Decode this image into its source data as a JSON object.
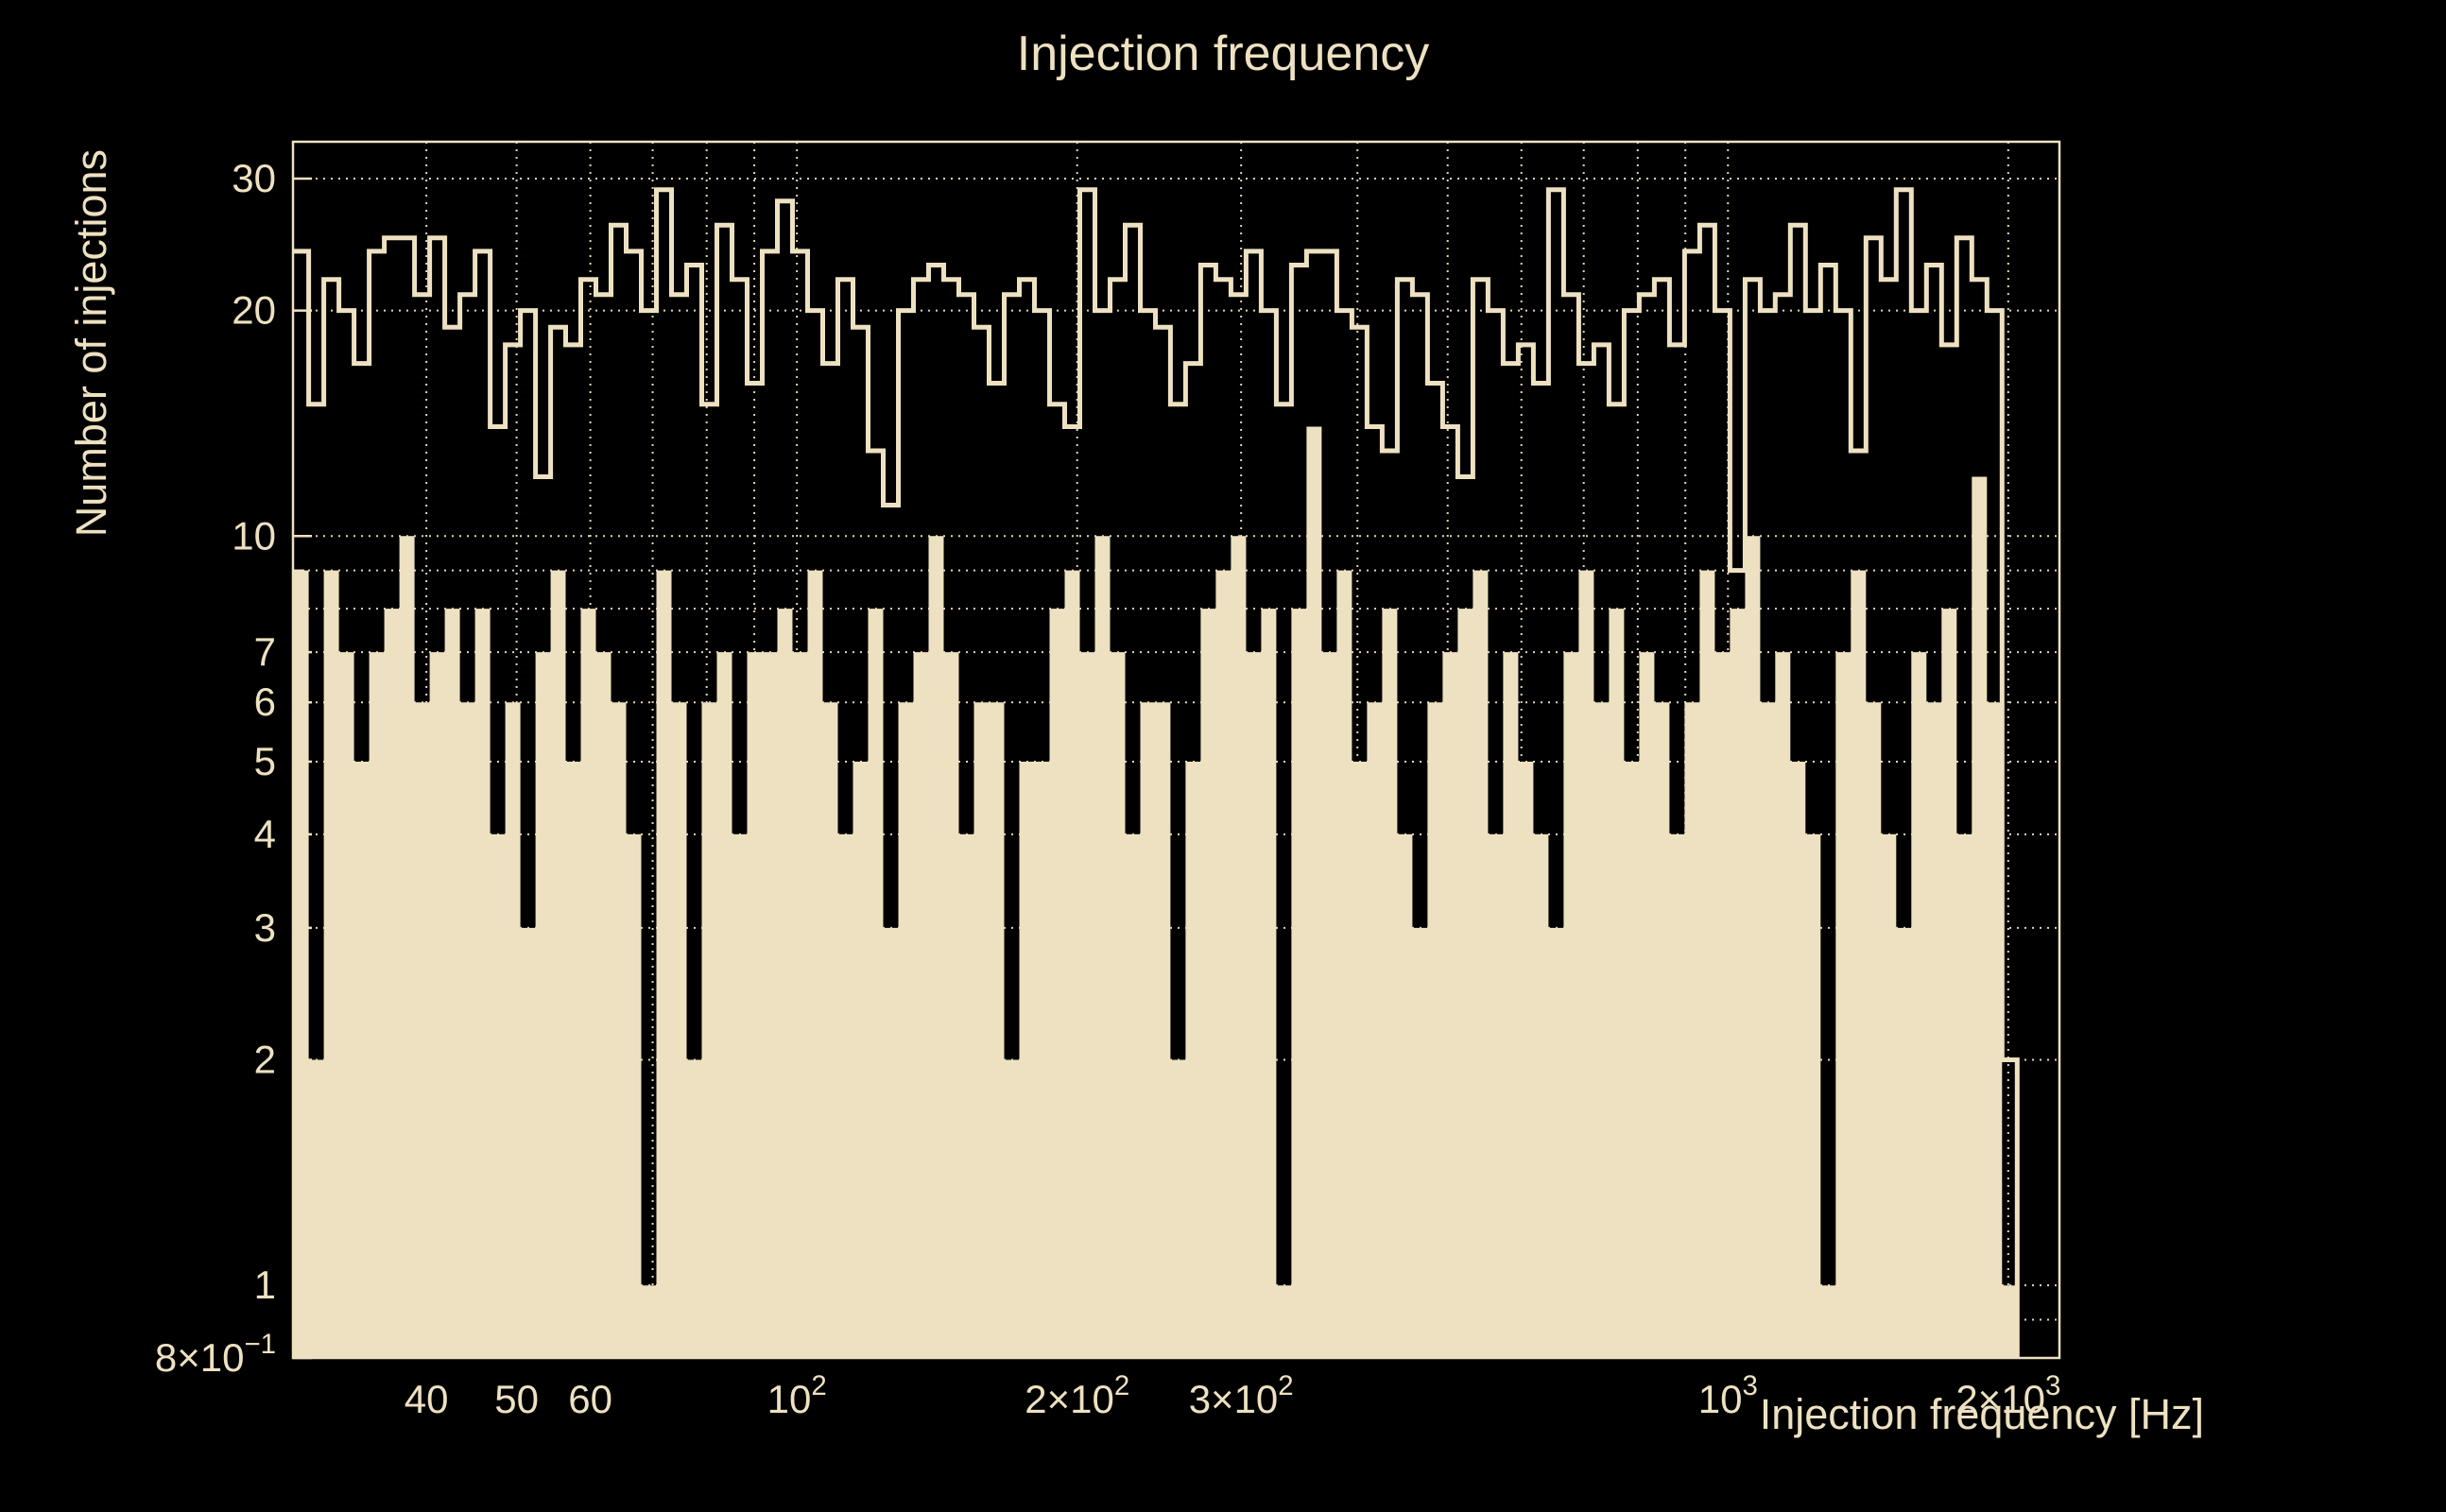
{
  "title": "Injection frequency",
  "chart_data": {
    "type": "histogram",
    "title": "Injection frequency",
    "xlabel": "Injection frequency [Hz]",
    "ylabel": "Number of injections",
    "x_scale": "log",
    "y_scale": "log",
    "x_range": [
      28.76,
      2270
    ],
    "y_range": [
      0.8,
      33.6
    ],
    "grid": true,
    "legend": "none",
    "colors": {
      "background": "#000000",
      "foreground": "#EDE1C1",
      "grid": "#EDE1C1",
      "frame": "#EDE1C1"
    },
    "bins": {
      "first_edge_hz": 28.8,
      "count": 114,
      "log_step_ratio": 1.0381,
      "last_edge_hz": 2059
    },
    "series": [
      {
        "name": "all-injections-outline",
        "style": "step-outline",
        "values": [
          24,
          15,
          22,
          20,
          17,
          24,
          25,
          25,
          21,
          25,
          19,
          21,
          24,
          14,
          18,
          20,
          12,
          19,
          18,
          22,
          21,
          26,
          24,
          20,
          29,
          21,
          23,
          15,
          26,
          22,
          16,
          24,
          28,
          24,
          20,
          17,
          22,
          19,
          13,
          11,
          20,
          22,
          23,
          22,
          21,
          19,
          16,
          21,
          22,
          20,
          15,
          14,
          29,
          20,
          22,
          26,
          20,
          19,
          15,
          17,
          23,
          22,
          21,
          24,
          20,
          15,
          23,
          24,
          24,
          20,
          19,
          14,
          13,
          22,
          21,
          16,
          14,
          12,
          22,
          20,
          17,
          18,
          16,
          29,
          21,
          17,
          18,
          15,
          20,
          21,
          22,
          18,
          24,
          26,
          20,
          9,
          22,
          20,
          21,
          26,
          20,
          23,
          20,
          13,
          25,
          22,
          29,
          20,
          23,
          18,
          25,
          22,
          20,
          2
        ]
      },
      {
        "name": "subset-filled",
        "style": "filled",
        "values": [
          9,
          2,
          9,
          7,
          5,
          7,
          8,
          10,
          6,
          7,
          8,
          6,
          8,
          4,
          6,
          3,
          7,
          9,
          5,
          8,
          7,
          6,
          4,
          1,
          9,
          6,
          2,
          6,
          7,
          4,
          7,
          7,
          8,
          7,
          9,
          6,
          4,
          5,
          8,
          3,
          6,
          7,
          10,
          7,
          4,
          6,
          6,
          2,
          5,
          5,
          8,
          9,
          7,
          10,
          7,
          4,
          6,
          6,
          2,
          5,
          8,
          9,
          10,
          7,
          8,
          1,
          8,
          14,
          7,
          9,
          5,
          6,
          8,
          4,
          3,
          6,
          7,
          8,
          9,
          4,
          7,
          5,
          4,
          3,
          7,
          9,
          6,
          8,
          5,
          7,
          6,
          4,
          6,
          9,
          7,
          8,
          10,
          6,
          7,
          5,
          4,
          1,
          7,
          9,
          6,
          4,
          3,
          7,
          6,
          8,
          4,
          12,
          6,
          1
        ]
      }
    ],
    "x_ticks": [
      {
        "value": 40,
        "label": "40"
      },
      {
        "value": 50,
        "label": "50"
      },
      {
        "value": 60,
        "label": "60"
      },
      {
        "value": 100,
        "label": "10^2"
      },
      {
        "value": 200,
        "label": "2×10^2"
      },
      {
        "value": 300,
        "label": "3×10^2"
      },
      {
        "value": 1000,
        "label": "10^3"
      },
      {
        "value": 2000,
        "label": "2×10^3"
      }
    ],
    "x_minor_ticks": [
      70,
      80,
      90,
      400,
      500,
      600,
      700,
      800,
      900
    ],
    "y_ticks": [
      {
        "value": 30,
        "label": "30"
      },
      {
        "value": 20,
        "label": "20"
      },
      {
        "value": 10,
        "label": "10"
      },
      {
        "value": 7,
        "label": "7"
      },
      {
        "value": 6,
        "label": "6"
      },
      {
        "value": 5,
        "label": "5"
      },
      {
        "value": 4,
        "label": "4"
      },
      {
        "value": 3,
        "label": "3"
      },
      {
        "value": 2,
        "label": "2"
      },
      {
        "value": 1,
        "label": "1"
      },
      {
        "value": 0.8,
        "label": "8×10^-1"
      }
    ],
    "y_minor_ticks": [
      8,
      9,
      0.9
    ],
    "x_gridlines": [
      40,
      50,
      60,
      70,
      80,
      90,
      100,
      200,
      300,
      400,
      500,
      600,
      700,
      800,
      900,
      1000,
      2000
    ],
    "y_gridlines": [
      0.9,
      1,
      2,
      3,
      4,
      5,
      6,
      7,
      8,
      9,
      10,
      20,
      30
    ]
  }
}
